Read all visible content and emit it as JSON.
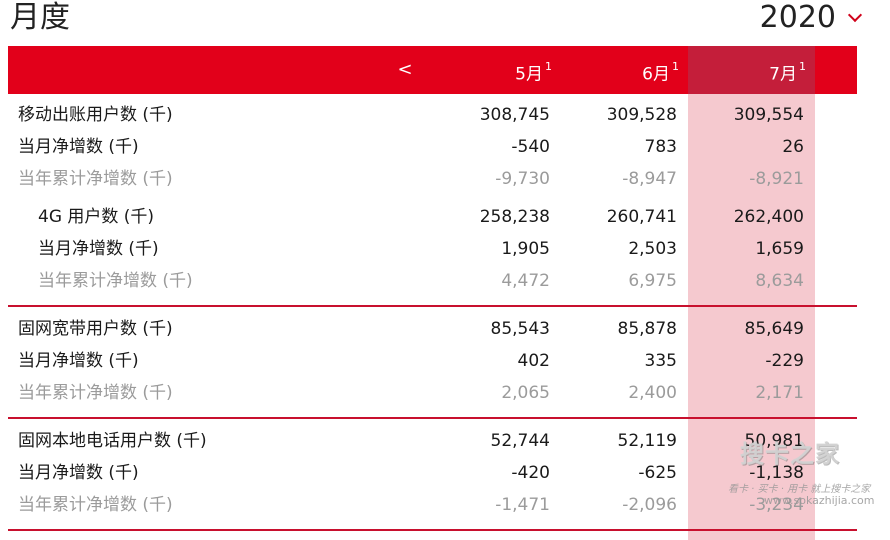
{
  "header": {
    "title": "月度",
    "year": "2020"
  },
  "table": {
    "prev_label": "<",
    "columns": [
      {
        "label": "5月",
        "sup": "1"
      },
      {
        "label": "6月",
        "sup": "1"
      },
      {
        "label": "7月",
        "sup": "1"
      }
    ],
    "rows": [
      {
        "label": "移动出账用户数 (千)",
        "values": [
          "308,745",
          "309,528",
          "309,554"
        ],
        "style": "normal",
        "indent": false
      },
      {
        "label": "当月净增数 (千)",
        "values": [
          "-540",
          "783",
          "26"
        ],
        "style": "normal",
        "indent": false
      },
      {
        "label": "当年累计净增数 (千)",
        "values": [
          "-9,730",
          "-8,947",
          "-8,921"
        ],
        "style": "grey",
        "indent": false
      },
      {
        "label": "4G 用户数 (千)",
        "values": [
          "258,238",
          "260,741",
          "262,400"
        ],
        "style": "normal",
        "indent": true
      },
      {
        "label": "当月净增数 (千)",
        "values": [
          "1,905",
          "2,503",
          "1,659"
        ],
        "style": "normal",
        "indent": true
      },
      {
        "label": "当年累计净增数 (千)",
        "values": [
          "4,472",
          "6,975",
          "8,634"
        ],
        "style": "grey",
        "indent": true
      },
      {
        "label": "固网宽带用户数 (千)",
        "values": [
          "85,543",
          "85,878",
          "85,649"
        ],
        "style": "normal",
        "indent": false
      },
      {
        "label": "当月净增数 (千)",
        "values": [
          "402",
          "335",
          "-229"
        ],
        "style": "normal",
        "indent": false
      },
      {
        "label": "当年累计净增数 (千)",
        "values": [
          "2,065",
          "2,400",
          "2,171"
        ],
        "style": "grey",
        "indent": false
      },
      {
        "label": "固网本地电话用户数 (千)",
        "values": [
          "52,744",
          "52,119",
          "50,981"
        ],
        "style": "normal",
        "indent": false
      },
      {
        "label": "当月净增数 (千)",
        "values": [
          "-420",
          "-625",
          "-1,138"
        ],
        "style": "normal",
        "indent": false
      },
      {
        "label": "当年累计净增数 (千)",
        "values": [
          "-1,471",
          "-2,096",
          "-3,234"
        ],
        "style": "grey",
        "indent": false
      }
    ]
  },
  "watermark": {
    "main": "搜卡之家",
    "sub": "看卡 · 买卡 · 用卡 就上搜卡之家",
    "url": "www.sokazhijia.com"
  },
  "colors": {
    "accent": "#e2001a",
    "highlight_head": "#c41e3a",
    "highlight_body": "#f5c9cf",
    "divider": "#c8102e",
    "muted_text": "#9b9b9b"
  }
}
